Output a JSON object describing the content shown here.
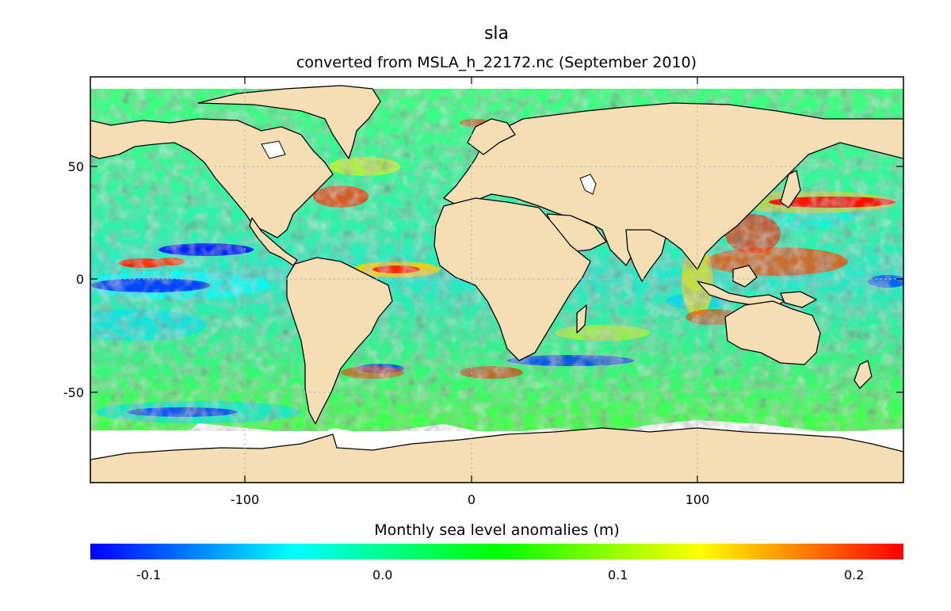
{
  "title": "sla",
  "subtitle": "converted from MSLA_h_22172.nc (September 2010)",
  "map": {
    "type": "global gridded map",
    "x_ticks": [
      "-100",
      "0",
      "100"
    ],
    "y_ticks": [
      "50",
      "0",
      "-50"
    ],
    "land_color": "#f5deb3",
    "missing_color": "#ffffff",
    "grid": true
  },
  "colorbar": {
    "label": "Monthly sea level anomalies (m)",
    "ticks": [
      "-0.1",
      "0.0",
      "0.1",
      "0.2"
    ],
    "colors": [
      "#0000ff",
      "#00ffff",
      "#00ff00",
      "#ffff00",
      "#ff0000"
    ]
  }
}
